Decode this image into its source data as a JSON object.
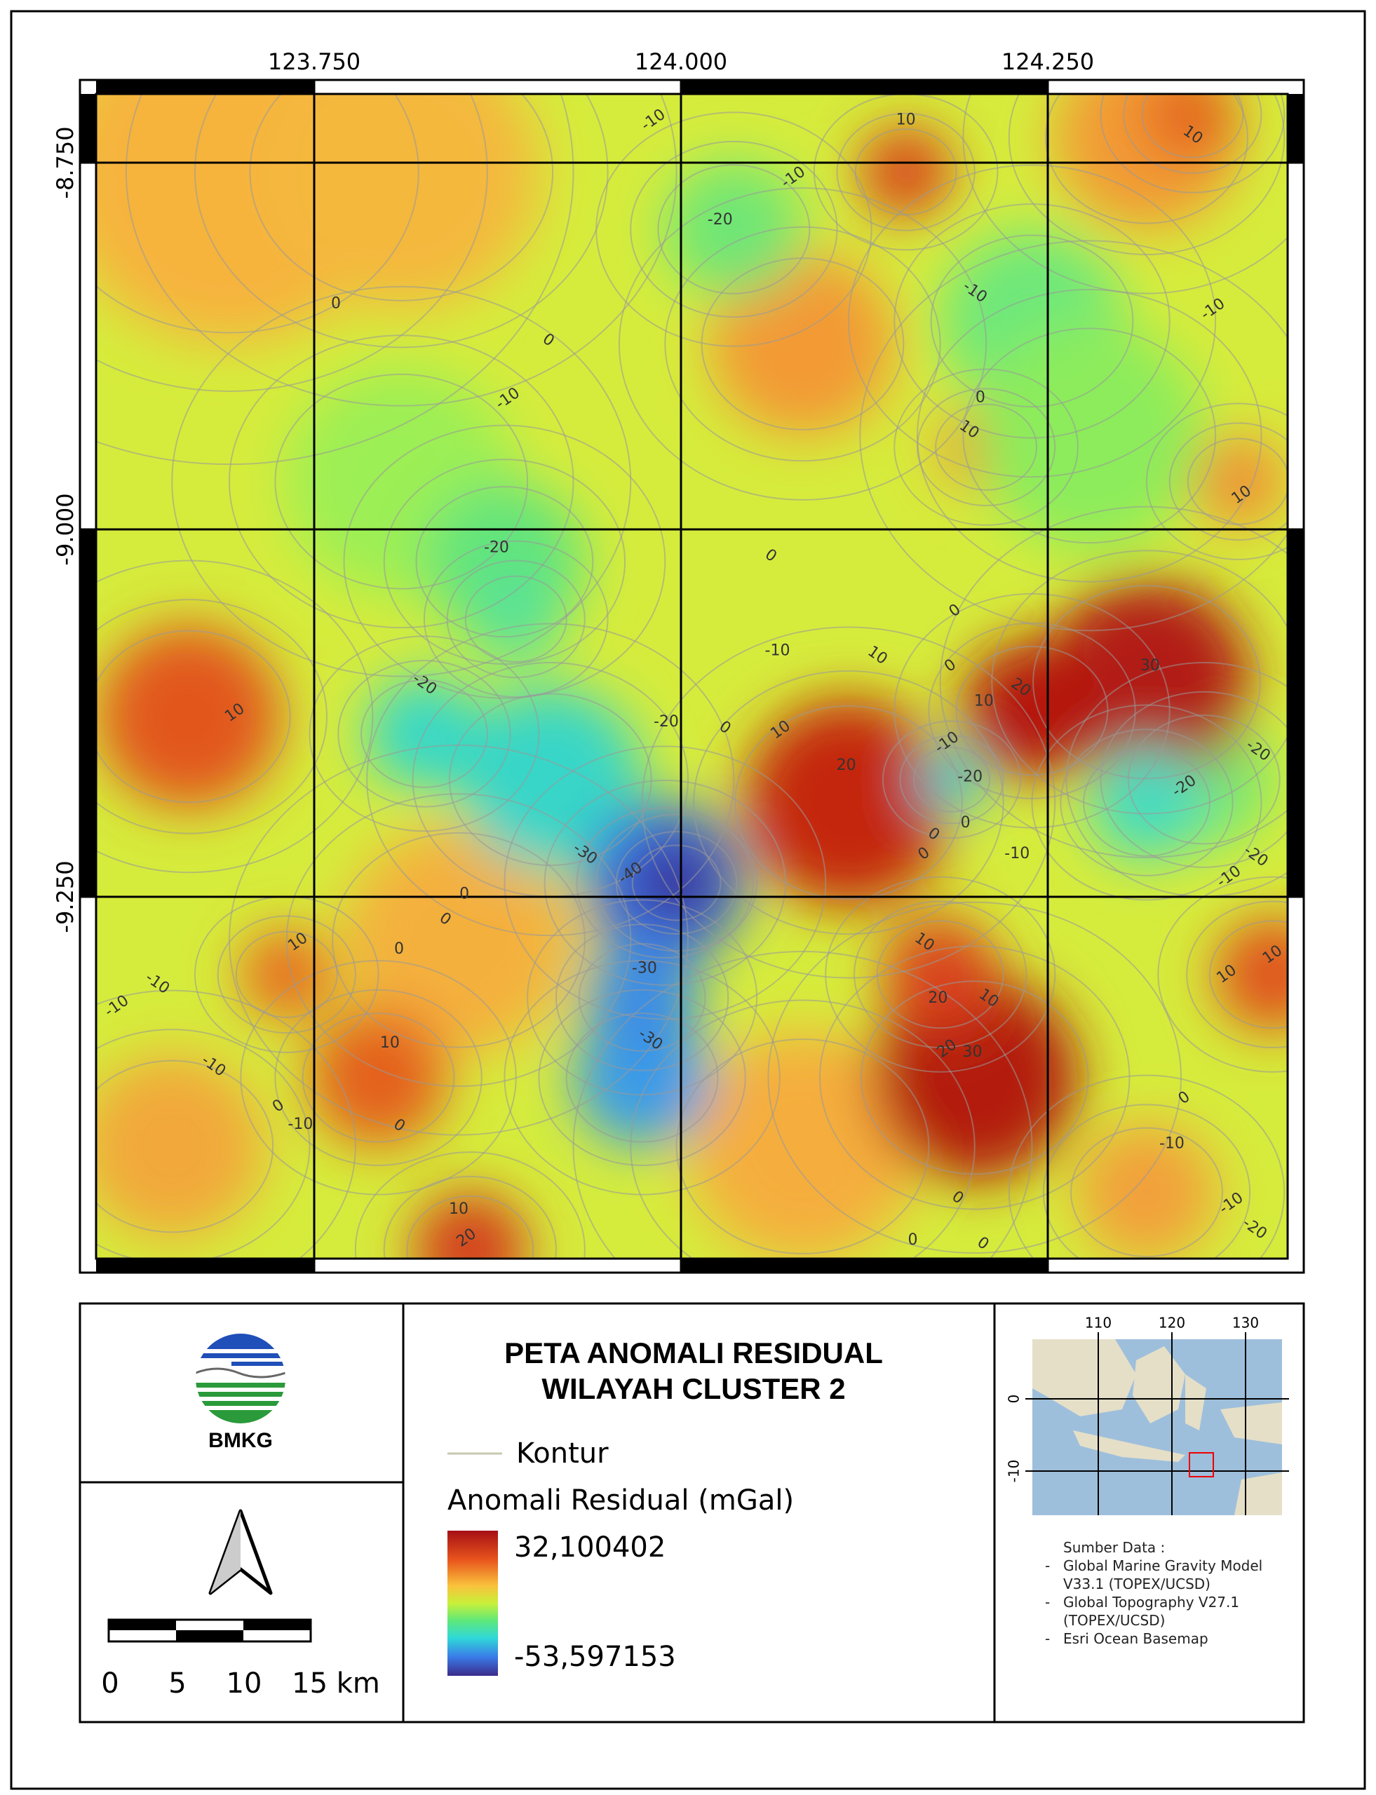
{
  "map": {
    "x_labels": [
      "123.750",
      "124.000",
      "124.250"
    ],
    "y_labels": [
      "-8.750",
      "-9.000",
      "-9.250"
    ],
    "contour_labels": [
      "-10",
      "10",
      "10",
      "-10",
      "-20",
      "-10",
      "-10",
      "0",
      "0",
      "-10",
      "0",
      "10",
      "10",
      "-20",
      "0",
      "0",
      "-10",
      "10",
      "0",
      "30",
      "-20",
      "10",
      "-20",
      "0",
      "10",
      "10",
      "20",
      "-10",
      "-20",
      "-20",
      "-20",
      "20",
      "-30",
      "-40",
      "0",
      "0",
      "0",
      "-10",
      "-20",
      "-10",
      "0",
      "0",
      "10",
      "0",
      "10",
      "10",
      "-30",
      "-10",
      "-10",
      "20",
      "10",
      "10",
      "10",
      "-30",
      "20",
      "30",
      "-10",
      "0",
      "-10",
      "0",
      "0",
      "-10",
      "0",
      "-10",
      "10",
      "-20",
      "20",
      "0",
      "0"
    ]
  },
  "title": {
    "line1": "PETA ANOMALI RESIDUAL",
    "line2": "WILAYAH CLUSTER 2"
  },
  "logo": {
    "text": "BMKG"
  },
  "legend": {
    "contour": "Kontur",
    "raster_title": "Anomali Residual (mGal)",
    "max": "32,100402",
    "min": "-53,597153"
  },
  "scale_bar": {
    "labels": [
      "0",
      "5",
      "10",
      "15 km"
    ]
  },
  "inset": {
    "x_labels": [
      "110",
      "120",
      "130"
    ],
    "y_labels": [
      "0",
      "-10"
    ]
  },
  "sources": {
    "heading": "Sumber Data :",
    "items": [
      "Global Marine Gravity Model V33.1 (TOPEX/UCSD)",
      "Global Topography V27.1 (TOPEX/UCSD)",
      "Esri Ocean Basemap"
    ]
  }
}
